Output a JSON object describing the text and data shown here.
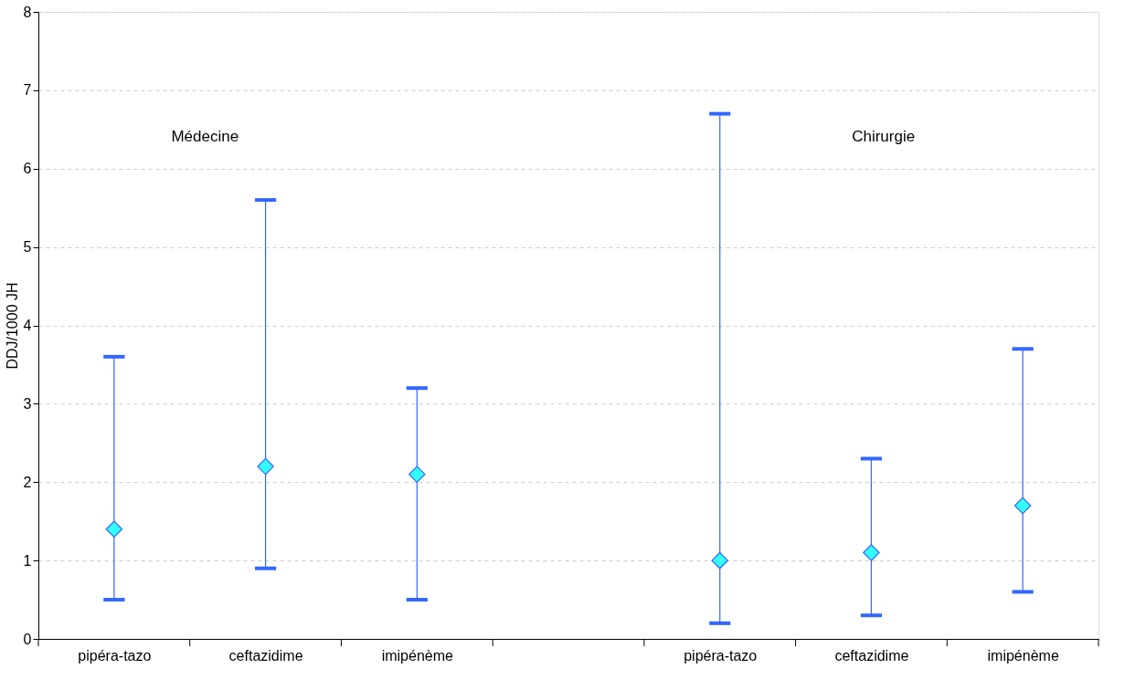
{
  "chart_data": {
    "type": "scatter",
    "categories": [
      "pipéra-tazo",
      "ceftazidime",
      "imipénème",
      null,
      "pipéra-tazo",
      "ceftazidime",
      "imipénème"
    ],
    "series": [
      {
        "color": "#33ffff",
        "values": [
          1.4,
          2.2,
          2.1,
          null,
          1.0,
          1.1,
          1.7
        ],
        "errors": [
          [
            0.5,
            3.6
          ],
          [
            0.9,
            5.6
          ],
          [
            0.5,
            3.2
          ],
          null,
          [
            0.2,
            6.7
          ],
          [
            0.3,
            2.3
          ],
          [
            0.6,
            3.7
          ]
        ]
      }
    ],
    "ylabel": "DDJ/1000 JH",
    "ylim": [
      0,
      8
    ],
    "yticks": [
      0,
      1,
      2,
      3,
      4,
      5,
      6,
      7,
      8
    ],
    "annotations": [
      "Médecine",
      "Chirurgie"
    ],
    "grid": "y",
    "marker": "diamond",
    "legend": false
  }
}
